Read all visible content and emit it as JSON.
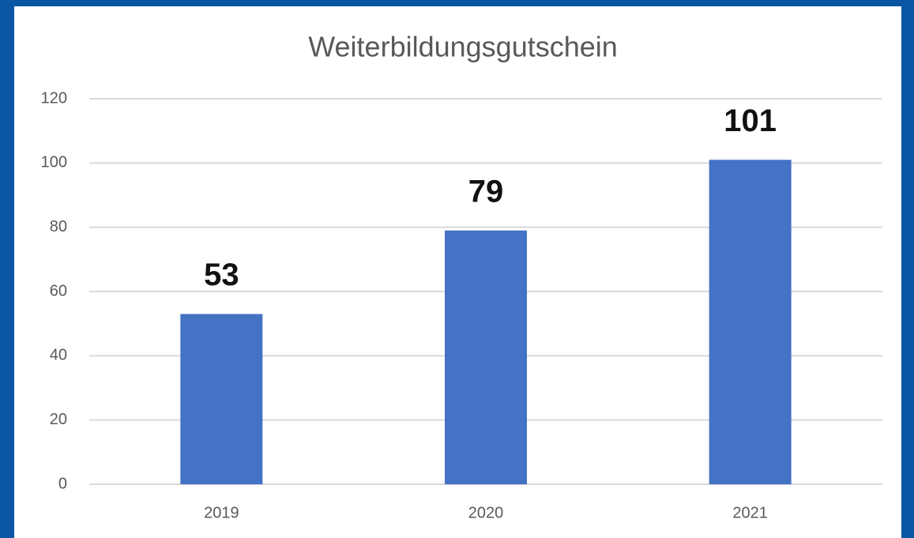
{
  "chart_data": {
    "type": "bar",
    "title": "Weiterbildungsgutschein",
    "categories": [
      "2019",
      "2020",
      "2021"
    ],
    "values": [
      53,
      79,
      101
    ],
    "color": "#4472c4",
    "ylim": [
      0,
      120
    ],
    "yticks": [
      0,
      20,
      40,
      60,
      80,
      100,
      120
    ],
    "grid": true
  }
}
